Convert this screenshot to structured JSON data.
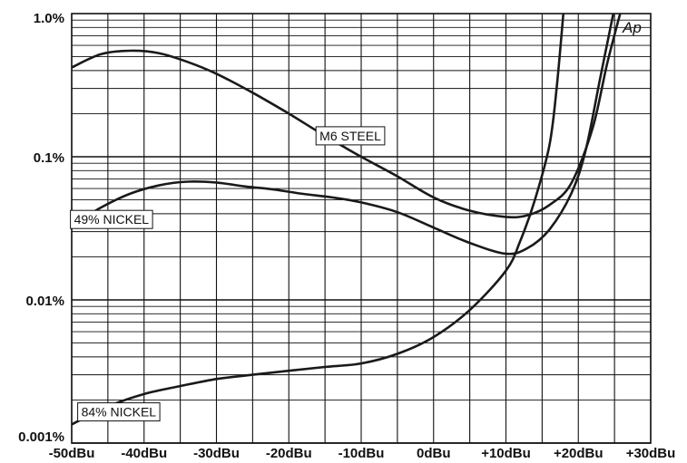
{
  "chart_data": {
    "type": "line",
    "title": "",
    "xlabel": "",
    "ylabel": "",
    "x_scale": "linear",
    "y_scale": "log",
    "xlim": [
      -50,
      30
    ],
    "ylim": [
      0.001,
      1.0
    ],
    "grid": true,
    "x_ticks": [
      -50,
      -40,
      -30,
      -20,
      -10,
      0,
      10,
      20,
      30
    ],
    "x_tick_labels": [
      "-50dBu",
      "-40dBu",
      "-30dBu",
      "-20dBu",
      "-10dBu",
      "0dBu",
      "+10dBu",
      "+20dBu",
      "+30dBu"
    ],
    "y_ticks": [
      1.0,
      0.1,
      0.01,
      0.001
    ],
    "y_tick_labels": [
      "1.0%",
      "0.1%",
      "0.01%",
      "0.001%"
    ],
    "brand_mark": "Ap",
    "series": [
      {
        "name": "M6 STEEL",
        "x": [
          -50,
          -46,
          -42,
          -38,
          -34,
          -30,
          -25,
          -20,
          -15,
          -10,
          -5,
          0,
          5,
          10,
          13,
          16,
          19,
          22,
          24,
          26
        ],
        "y": [
          0.42,
          0.52,
          0.55,
          0.53,
          0.46,
          0.38,
          0.28,
          0.2,
          0.14,
          0.1,
          0.073,
          0.052,
          0.042,
          0.038,
          0.039,
          0.046,
          0.065,
          0.16,
          0.45,
          1.1
        ]
      },
      {
        "name": "49% NICKEL",
        "x": [
          -50,
          -46,
          -42,
          -38,
          -34,
          -30,
          -26,
          -22,
          -18,
          -14,
          -10,
          -5,
          0,
          5,
          10,
          13,
          16,
          19,
          21,
          23,
          25
        ],
        "y": [
          0.033,
          0.044,
          0.055,
          0.063,
          0.067,
          0.066,
          0.062,
          0.059,
          0.055,
          0.052,
          0.048,
          0.041,
          0.032,
          0.025,
          0.021,
          0.023,
          0.031,
          0.055,
          0.11,
          0.35,
          1.1
        ]
      },
      {
        "name": "84% NICKEL",
        "x": [
          -50,
          -45,
          -40,
          -35,
          -30,
          -25,
          -20,
          -15,
          -10,
          -5,
          0,
          5,
          10,
          12,
          14,
          16,
          17,
          18
        ],
        "y": [
          0.00135,
          0.0018,
          0.0022,
          0.0025,
          0.0028,
          0.003,
          0.0032,
          0.0034,
          0.0036,
          0.0042,
          0.0055,
          0.0085,
          0.016,
          0.026,
          0.05,
          0.12,
          0.3,
          1.1
        ]
      }
    ]
  }
}
